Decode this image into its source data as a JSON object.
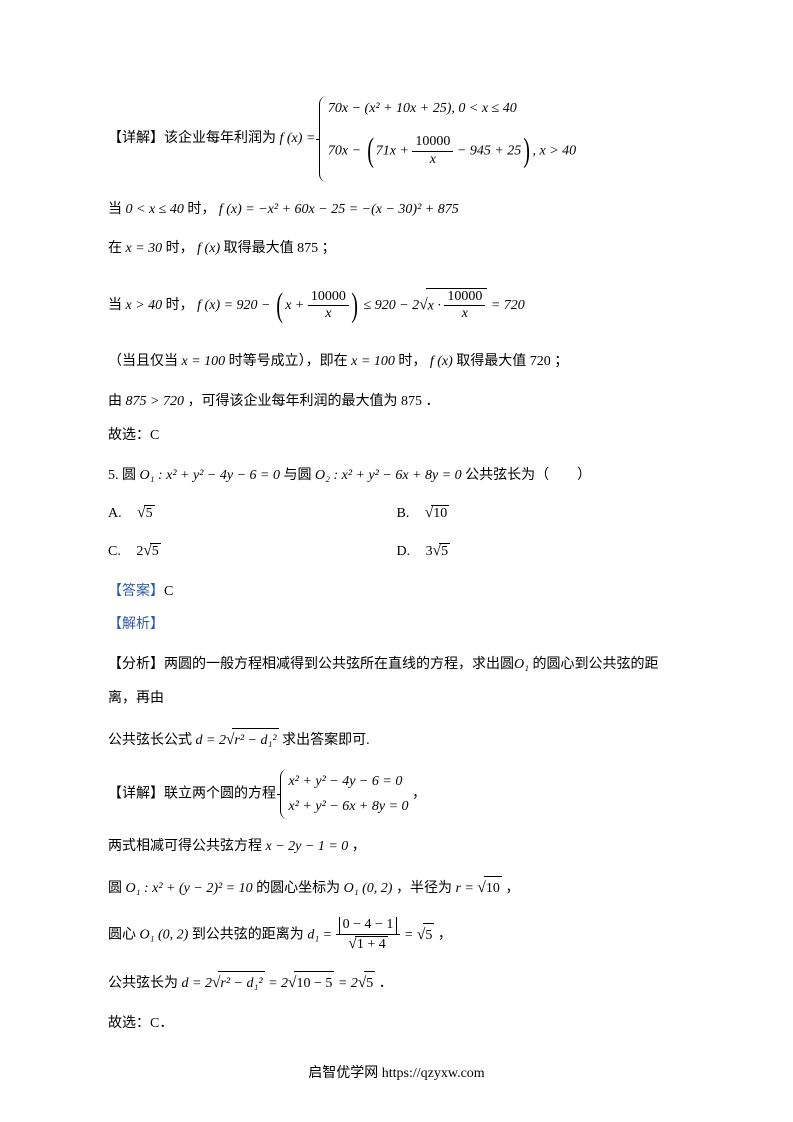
{
  "colors": {
    "text": "#000000",
    "blue": "#2e5aac",
    "background": "#ffffff"
  },
  "typography": {
    "body_fontsize_pt": 10.5,
    "math_font": "Times New Roman",
    "cjk_font": "SimSun"
  },
  "p1": {
    "prefix": "【详解】该企业每年利润为",
    "fx": "f (x) =",
    "case1": "70x − (x² + 10x + 25), 0 < x ≤ 40",
    "case2_a": "70x − ",
    "case2_b": "71x + ",
    "case2_frac_num": "10000",
    "case2_frac_den": "x",
    "case2_c": " − 945 + 25",
    "case2_cond": ", x > 40"
  },
  "p2": {
    "a": "当",
    "cond": "0 < x ≤ 40",
    "b": "时，",
    "expr": "f (x) = −x² + 60x − 25 = −(x − 30)² + 875"
  },
  "p3": {
    "a": "在",
    "cond": "x = 30",
    "b": "时，",
    "fx": "f (x)",
    "c": "取得最大值",
    "val": "875",
    "d": "；"
  },
  "p4": {
    "a": "当",
    "cond": "x > 40",
    "b": "时，",
    "lhs": "f (x) = 920 − ",
    "paren_a": "x + ",
    "frac_num": "10000",
    "frac_den": "x",
    "mid": " ≤ 920 − 2",
    "sqrt_a": "x · ",
    "sqrt_frac_num": "10000",
    "sqrt_frac_den": "x",
    "rhs": " = 720"
  },
  "p5": {
    "a": "（当且仅当",
    "cond": "x = 100",
    "b": "时等号成立），即在",
    "cond2": "x = 100",
    "c": "时，",
    "fx": "f (x)",
    "d": "取得最大值",
    "val": "720",
    "e": "；"
  },
  "p6": {
    "a": "由",
    "ineq": "875 > 720",
    "b": "，可得该企业每年利润的最大值为",
    "val": "875",
    "c": "．"
  },
  "p7": "故选：C",
  "q5": {
    "num": "5.",
    "a": "圆",
    "o1": "O₁ : x² + y² − 4y − 6 = 0",
    "b": "与圆",
    "o2": "O₂ : x² + y² − 6x + 8y = 0",
    "c": "公共弦长为（　　）"
  },
  "options": {
    "A": {
      "label": "A.",
      "val_pre": "",
      "val_rad": "5"
    },
    "B": {
      "label": "B.",
      "val_pre": "",
      "val_rad": "10"
    },
    "C": {
      "label": "C.",
      "val_pre": "2",
      "val_rad": "5"
    },
    "D": {
      "label": "D.",
      "val_pre": "3",
      "val_rad": "5"
    }
  },
  "ans": {
    "label": "【答案】",
    "val": "C"
  },
  "jiexi": "【解析】",
  "fenxi": {
    "label": "【分析】",
    "a": "两圆的一般方程相减得到公共弦所在直线的方程，求出圆",
    "o1": "O₁",
    "b": " 的圆心到公共弦的距",
    "c": "离，再由"
  },
  "p8": {
    "a": "公共弦长公式",
    "d_eq": "d = 2",
    "rad": "r² − d₁²",
    "b": " 求出答案即可."
  },
  "p9": {
    "label": "【详解】",
    "a": "联立两个圆的方程",
    "eq1": "x² + y² − 4y − 6 = 0",
    "eq2": "x² + y² − 6x + 8y = 0",
    "b": "，"
  },
  "p10": {
    "a": "两式相减可得公共弦方程",
    "eq": "x − 2y − 1 = 0",
    "b": "，"
  },
  "p11": {
    "a": "圆",
    "o1": "O₁ : x² + (y − 2)² = 10",
    "b": "的圆心坐标为",
    "pt": "O₁ (0, 2)",
    "c": "，半径为",
    "r_eq": "r = ",
    "r_rad": "10",
    "d": "，"
  },
  "p12": {
    "a": "圆心",
    "pt": "O₁ (0, 2)",
    "b": "到公共弦的距离为",
    "d1": "d₁ = ",
    "frac_num_abs": "0 − 4 − 1",
    "frac_den_rad": "1 + 4",
    "eq": " = ",
    "res_rad": "5",
    "c": "，"
  },
  "p13": {
    "a": "公共弦长为",
    "d_eq": "d = 2",
    "rad1": "r² − d₁²",
    "eq1": " = 2",
    "rad2": "10 − 5",
    "eq2": " = 2",
    "rad3": "5",
    "b": "．"
  },
  "p14": "故选：C．",
  "footer": "启智优学网 https://qzyxw.com"
}
